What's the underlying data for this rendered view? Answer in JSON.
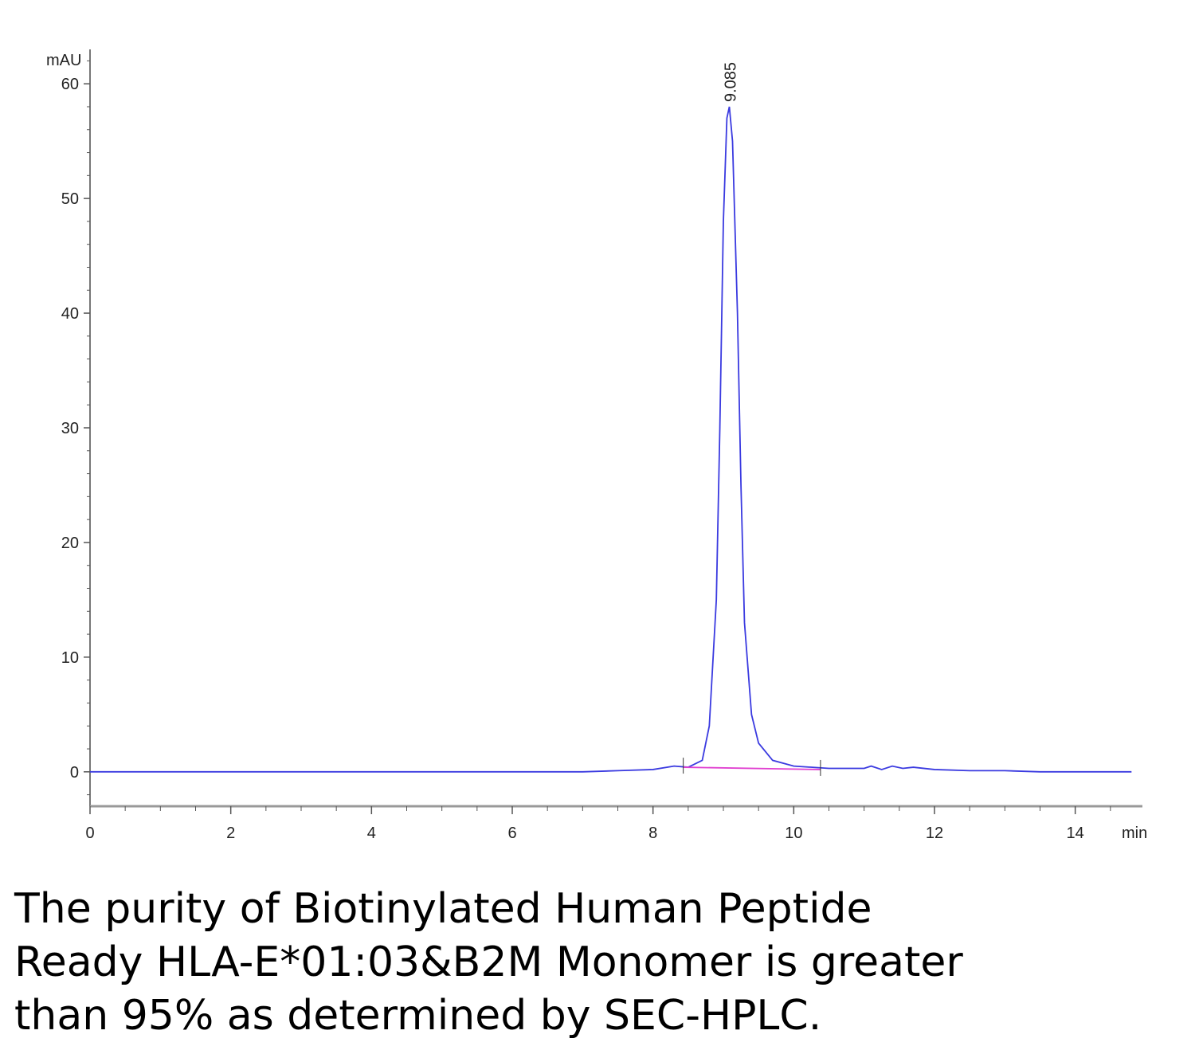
{
  "chart_data": {
    "type": "line",
    "y_label": "mAU",
    "x_label": "min",
    "series": [
      {
        "color": "#3a3ae0",
        "x": [
          0,
          3,
          6,
          7,
          7.5,
          8,
          8.3,
          8.5,
          8.7,
          8.8,
          8.9,
          8.95,
          9.0,
          9.05,
          9.085,
          9.13,
          9.2,
          9.25,
          9.3,
          9.4,
          9.5,
          9.7,
          10,
          10.5,
          11,
          11.1,
          11.25,
          11.4,
          11.55,
          11.7,
          12,
          12.5,
          13,
          13.5,
          14.8
        ],
        "values": [
          0,
          0,
          0,
          0,
          0.1,
          0.2,
          0.5,
          0.4,
          1,
          4,
          15,
          30,
          48,
          57,
          58,
          55,
          40,
          25,
          13,
          5,
          2.5,
          1,
          0.5,
          0.3,
          0.3,
          0.5,
          0.2,
          0.5,
          0.3,
          0.4,
          0.2,
          0.1,
          0.1,
          0,
          0
        ]
      },
      {
        "color": "#e040d0",
        "x": [
          8.43,
          10.38
        ],
        "values": [
          0.4,
          0.2
        ]
      }
    ],
    "annotations": [
      {
        "text": "9.085",
        "x": 9.085
      }
    ],
    "xlim": [
      0,
      15
    ],
    "ylim": [
      -3,
      63
    ],
    "xticks": [
      0,
      2,
      4,
      6,
      8,
      10,
      12,
      14
    ],
    "yticks": [
      0,
      10,
      20,
      30,
      40,
      50,
      60
    ],
    "xminorticks": [
      0.5,
      1,
      1.5,
      2.5,
      3,
      3.5,
      4.5,
      5,
      5.5,
      6.5,
      7,
      7.5,
      8.5,
      9,
      9.5,
      10.5,
      11,
      11.5,
      12.5,
      13,
      13.5,
      14.5
    ],
    "yminorticks": [
      -2,
      2,
      4,
      6,
      8,
      12,
      14,
      16,
      18,
      22,
      24,
      26,
      28,
      32,
      34,
      36,
      38,
      42,
      44,
      46,
      48,
      52,
      54,
      56,
      58,
      62
    ]
  },
  "caption": [
    "The purity of Biotinylated Human Peptide",
    "Ready HLA-E*01:03&B2M Monomer is greater",
    "than 95% as determined by SEC-HPLC."
  ]
}
